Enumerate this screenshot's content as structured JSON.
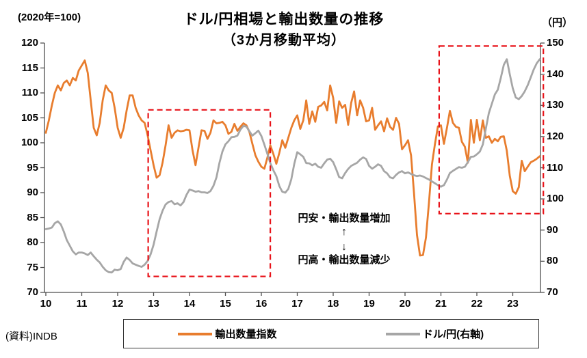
{
  "header": {
    "title": "ドル/円相場と輸出数量の推移",
    "subtitle": "（3か月移動平均）",
    "left_axis_unit": "(2020年=100)",
    "right_axis_unit": "（円）"
  },
  "source": "(資料)INDB",
  "annotation": {
    "line_top": "円安・輸出数量増加",
    "arrow_up": "↑",
    "arrow_down": "↓",
    "line_bottom": "円高・輸出数量減少"
  },
  "legend": {
    "items": [
      {
        "label": "輸出数量指数",
        "color": "#E87D2E"
      },
      {
        "label": "ドル/円(右軸)",
        "color": "#A6A6A6"
      }
    ]
  },
  "colors": {
    "export_line": "#E87D2E",
    "fx_line": "#A6A6A6",
    "highlight_box": "#E8131A",
    "axis": "#4d4d4d"
  },
  "chart_data": {
    "type": "line",
    "title": "ドル/円相場と輸出数量の推移（3か月移動平均）",
    "x_start_year": 2010,
    "x_step_months": 1,
    "x_tick_labels": [
      "10",
      "11",
      "12",
      "13",
      "14",
      "15",
      "16",
      "17",
      "18",
      "19",
      "20",
      "21",
      "22",
      "23"
    ],
    "left_axis": {
      "label": "(2020年=100)",
      "min": 70,
      "max": 120,
      "ticks": [
        70,
        75,
        80,
        85,
        90,
        95,
        100,
        105,
        110,
        115,
        120
      ]
    },
    "right_axis": {
      "label": "（円）",
      "min": 70,
      "max": 150,
      "ticks": [
        70,
        80,
        90,
        100,
        110,
        120,
        130,
        140,
        150
      ]
    },
    "legend_position": "bottom",
    "grid": false,
    "series": [
      {
        "name": "輸出数量指数",
        "axis": "left",
        "color": "#E87D2E",
        "values": [
          102.0,
          104.5,
          107.5,
          110.0,
          111.5,
          110.5,
          112.0,
          112.5,
          111.5,
          113.0,
          112.5,
          114.5,
          115.5,
          116.5,
          114.0,
          108.5,
          103.0,
          101.5,
          104.0,
          108.5,
          111.5,
          110.5,
          110.0,
          107.0,
          103.0,
          101.0,
          103.0,
          106.5,
          109.5,
          109.5,
          107.0,
          105.5,
          104.5,
          104.0,
          101.5,
          98.5,
          95.5,
          93.0,
          93.5,
          96.0,
          99.5,
          103.5,
          101.0,
          102.0,
          102.5,
          102.3,
          102.4,
          102.6,
          102.5,
          98.5,
          95.5,
          99.0,
          102.5,
          102.4,
          100.8,
          102.0,
          104.5,
          103.9,
          104.0,
          104.2,
          103.5,
          101.8,
          102.2,
          103.8,
          102.4,
          103.2,
          103.9,
          103.5,
          102.2,
          99.8,
          97.5,
          96.2,
          95.2,
          94.8,
          97.0,
          99.5,
          97.8,
          95.8,
          98.0,
          100.5,
          99.0,
          101.0,
          103.0,
          104.5,
          105.5,
          102.8,
          104.5,
          108.5,
          103.8,
          106.3,
          104.2,
          107.2,
          107.5,
          108.2,
          106.5,
          111.5,
          109.0,
          104.0,
          108.3,
          107.0,
          107.6,
          103.6,
          108.0,
          110.3,
          105.5,
          108.5,
          107.0,
          104.3,
          104.5,
          107.0,
          102.6,
          103.5,
          104.3,
          102.3,
          104.9,
          103.2,
          102.6,
          105.0,
          103.8,
          98.7,
          99.5,
          100.5,
          97.5,
          90.0,
          81.5,
          77.4,
          77.5,
          81.0,
          88.0,
          95.7,
          99.8,
          103.3,
          103.5,
          99.8,
          103.0,
          106.4,
          104.0,
          103.2,
          103.0,
          100.2,
          99.2,
          96.0,
          104.6,
          100.0,
          104.6,
          100.5,
          104.5,
          101.0,
          101.3,
          100.0,
          100.8,
          100.3,
          101.2,
          101.3,
          98.4,
          93.4,
          90.3,
          89.8,
          91.1,
          96.4,
          94.3,
          95.2,
          96.1,
          96.4,
          96.8,
          97.3
        ]
      },
      {
        "name": "ドル/円(右軸)",
        "axis": "right",
        "color": "#A6A6A6",
        "values": [
          90.3,
          90.5,
          90.8,
          92.2,
          92.8,
          91.8,
          89.5,
          86.8,
          85.0,
          83.2,
          82.2,
          82.8,
          82.8,
          82.5,
          82.0,
          82.8,
          81.6,
          80.5,
          79.6,
          78.2,
          77.1,
          76.5,
          76.4,
          77.3,
          77.1,
          77.5,
          79.8,
          81.2,
          80.4,
          79.3,
          78.9,
          78.5,
          78.2,
          78.9,
          80.1,
          82.2,
          85.3,
          89.5,
          93.5,
          96.2,
          98.2,
          99.0,
          99.3,
          98.3,
          98.6,
          97.9,
          99.0,
          101.3,
          103.0,
          102.7,
          102.3,
          102.5,
          102.1,
          102.1,
          101.9,
          102.5,
          104.2,
          106.9,
          111.6,
          115.2,
          117.5,
          118.5,
          119.8,
          119.9,
          120.3,
          122.2,
          123.4,
          123.2,
          121.7,
          120.3,
          121.1,
          121.9,
          120.2,
          117.4,
          114.5,
          111.5,
          109.2,
          107.3,
          104.1,
          102.3,
          102.0,
          103.2,
          106.3,
          111.2,
          115.0,
          114.3,
          113.5,
          111.5,
          111.4,
          110.8,
          111.3,
          110.3,
          110.0,
          111.4,
          112.6,
          112.9,
          111.8,
          109.5,
          107.0,
          106.6,
          108.3,
          109.6,
          110.6,
          111.1,
          111.6,
          112.6,
          113.3,
          112.8,
          110.6,
          109.7,
          110.3,
          111.1,
          110.6,
          108.9,
          108.2,
          106.9,
          106.6,
          107.7,
          108.5,
          108.9,
          108.2,
          108.5,
          108.0,
          107.6,
          107.3,
          107.5,
          107.2,
          106.7,
          106.2,
          105.6,
          105.0,
          104.4,
          103.9,
          104.4,
          106.2,
          108.3,
          109.0,
          109.6,
          110.2,
          110.0,
          110.3,
          111.8,
          113.5,
          113.6,
          114.3,
          115.2,
          117.5,
          122.5,
          127.5,
          130.5,
          133.5,
          135.0,
          138.8,
          143.0,
          144.8,
          140.0,
          135.5,
          132.5,
          132.0,
          133.0,
          134.5,
          136.5,
          139.0,
          141.5,
          143.5,
          144.8
        ]
      }
    ],
    "highlight_boxes": [
      {
        "x1_year": 12.85,
        "x2_year": 16.25,
        "top_left_axis_value": 106.6,
        "bottom_left_axis_value": 73.2
      },
      {
        "x1_year": 20.95,
        "x2_year": 23.85,
        "top_left_axis_value": 119.4,
        "bottom_left_axis_value": 85.8
      }
    ]
  }
}
